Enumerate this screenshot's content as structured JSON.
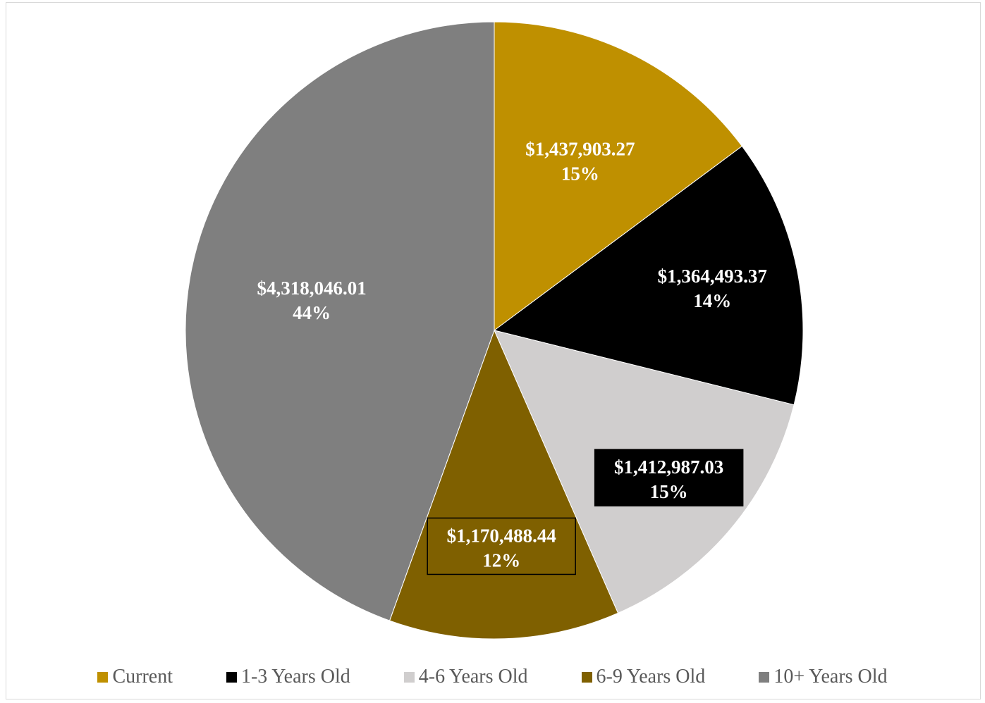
{
  "chart_data": {
    "type": "pie",
    "title": "",
    "categories": [
      "Current",
      "1-3 Years Old",
      "4-6 Years Old",
      "6-9 Years Old",
      "10+ Years Old"
    ],
    "values": [
      1437903.27,
      1364493.37,
      1412987.03,
      1170488.44,
      4318046.01
    ],
    "value_labels": [
      "$1,437,903.27",
      "$1,364,493.37",
      "$1,412,987.03",
      "$1,170,488.44",
      "$4,318,046.01"
    ],
    "percent_labels": [
      "15%",
      "14%",
      "15%",
      "12%",
      "44%"
    ],
    "colors": [
      "#bf9000",
      "#000000",
      "#d0cece",
      "#7f6000",
      "#7f7f7f"
    ],
    "label_colors": [
      "#ffffff",
      "#ffffff",
      "#ffffff",
      "#ffffff",
      "#ffffff"
    ],
    "label_boxed": [
      false,
      false,
      true,
      true,
      false
    ],
    "legend_position": "bottom"
  }
}
